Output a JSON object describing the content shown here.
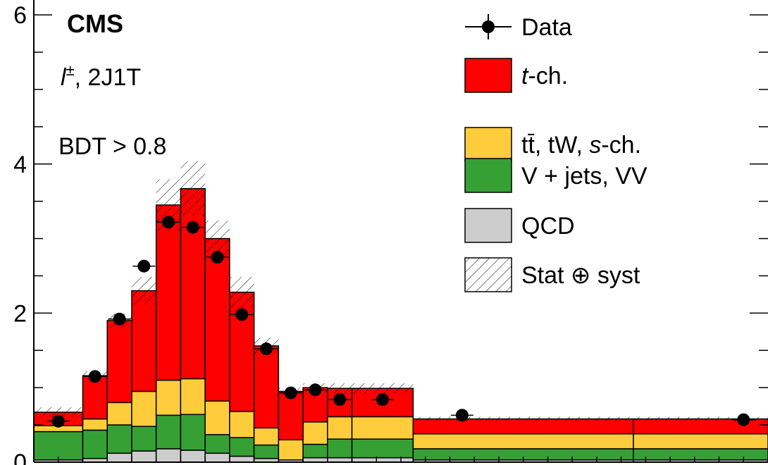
{
  "chart_data": {
    "type": "bar",
    "stacked": true,
    "experiment_label": "CMS",
    "channel_label_base": "l",
    "channel_label_sup": "±",
    "channel_label_rest": ", 2J1T",
    "cut_label": "BDT > 0.8",
    "yticks": [
      "0",
      "2",
      "4",
      "6"
    ],
    "ylim": [
      0,
      6.2
    ],
    "bin_edges": [
      0.0,
      0.4,
      0.6,
      0.8,
      1.0,
      1.2,
      1.4,
      1.6,
      1.8,
      2.0,
      2.2,
      2.4,
      2.6,
      3.1,
      4.9,
      6.0
    ],
    "series": [
      {
        "name": "QCD",
        "color": "#cccccc",
        "values": [
          0.03,
          0.05,
          0.12,
          0.15,
          0.18,
          0.16,
          0.12,
          0.08,
          0.05,
          0.03,
          0.06,
          0.06,
          0.06,
          0.03,
          0.03
        ]
      },
      {
        "name": "V + jets, VV",
        "color": "#36a035",
        "values": [
          0.38,
          0.38,
          0.38,
          0.33,
          0.45,
          0.48,
          0.25,
          0.25,
          0.18,
          0.0,
          0.18,
          0.25,
          0.25,
          0.15,
          0.15
        ]
      },
      {
        "name": "tt̄, tW, s-ch.",
        "color": "#ffcd3c",
        "values": [
          0.08,
          0.15,
          0.3,
          0.47,
          0.47,
          0.48,
          0.45,
          0.35,
          0.23,
          0.27,
          0.3,
          0.3,
          0.3,
          0.2,
          0.2
        ]
      },
      {
        "name": "t-ch.",
        "color": "#ff0000",
        "values": [
          0.18,
          0.58,
          1.1,
          1.35,
          2.35,
          2.55,
          2.18,
          1.6,
          1.1,
          0.65,
          0.46,
          0.38,
          0.38,
          0.2,
          0.2
        ]
      }
    ],
    "data_points": {
      "name": "Data",
      "x": [
        0.2,
        0.5,
        0.7,
        0.9,
        1.1,
        1.3,
        1.5,
        1.7,
        1.9,
        2.1,
        2.3,
        2.5,
        2.85,
        3.5,
        5.8
      ],
      "y": [
        0.55,
        1.15,
        1.92,
        2.63,
        3.22,
        3.15,
        2.75,
        1.98,
        1.52,
        0.93,
        0.97,
        0.84,
        0.84,
        0.63,
        0.57
      ],
      "yerr": [
        0.03,
        0.04,
        0.05,
        0.06,
        0.07,
        0.07,
        0.06,
        0.06,
        0.05,
        0.04,
        0.04,
        0.03,
        0.03,
        0.02,
        0.02
      ]
    },
    "uncertainty_band": {
      "name": "Stat ⊕ syst",
      "rel": [
        0.1,
        0.05,
        0.05,
        0.08,
        0.1,
        0.1,
        0.08,
        0.09,
        0.07,
        0.05,
        0.06,
        0.07,
        0.07,
        0.05,
        0.05
      ]
    },
    "legend_position": "top-right",
    "legend": [
      {
        "label": "Data",
        "kind": "marker"
      },
      {
        "label_parts": [
          "t",
          "-ch."
        ],
        "kind": "fill",
        "color": "#ff0000"
      },
      {
        "label_parts": [
          "tt̄, tW, ",
          "s",
          "-ch."
        ],
        "kind": "fill",
        "color": "#ffcd3c"
      },
      {
        "label_parts": [
          "V + jets, VV"
        ],
        "kind": "fill",
        "color": "#36a035"
      },
      {
        "label_parts": [
          "QCD"
        ],
        "kind": "fill",
        "color": "#cccccc"
      },
      {
        "label_parts": [
          "Stat ⊕ syst"
        ],
        "kind": "hatch"
      }
    ]
  }
}
